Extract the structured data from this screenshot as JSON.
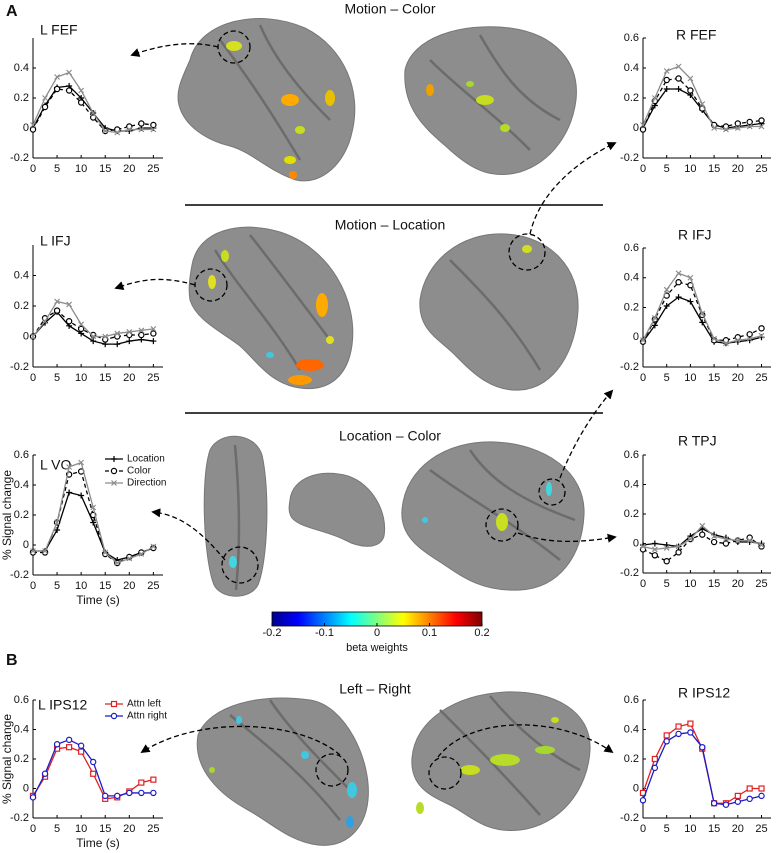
{
  "panel_labels": [
    "A",
    "B"
  ],
  "section_titles": [
    "Motion – Color",
    "Motion – Location",
    "Location – Color",
    "Left – Right"
  ],
  "colorbar": {
    "label": "beta weights",
    "lim": [
      -0.2,
      0.2
    ],
    "ticks": [
      -0.2,
      -0.1,
      0,
      0.1,
      0.2
    ]
  },
  "chart_data": [
    {
      "type": "line",
      "title": "L FEF",
      "x": [
        0,
        2.5,
        5,
        7.5,
        10,
        12.5,
        15,
        17.5,
        20,
        22.5,
        25
      ],
      "xlim": [
        0,
        27
      ],
      "xticks": [
        0,
        5,
        10,
        15,
        20,
        25
      ],
      "ylim": [
        -0.2,
        0.6
      ],
      "yticks": [
        -0.2,
        0,
        0.2,
        0.4
      ],
      "series": [
        {
          "color": "#000000",
          "linestyle": "solid",
          "marker": "plus",
          "values": [
            0,
            0.15,
            0.27,
            0.28,
            0.2,
            0.1,
            0,
            -0.02,
            -0.02,
            0,
            0
          ]
        },
        {
          "color": "#000000",
          "linestyle": "dashed",
          "marker": "circle",
          "values": [
            -0.01,
            0.14,
            0.26,
            0.25,
            0.17,
            0.07,
            -0.02,
            -0.01,
            0.01,
            0.03,
            0.02
          ]
        },
        {
          "color": "#8c8c8c",
          "linestyle": "solid",
          "marker": "x",
          "values": [
            0.02,
            0.2,
            0.34,
            0.37,
            0.25,
            0.1,
            -0.02,
            -0.03,
            -0.01,
            -0.01,
            -0.01
          ]
        }
      ]
    },
    {
      "type": "line",
      "title": "R FEF",
      "x": [
        0,
        2.5,
        5,
        7.5,
        10,
        12.5,
        15,
        17.5,
        20,
        22.5,
        25
      ],
      "xlim": [
        0,
        27
      ],
      "xticks": [
        0,
        5,
        10,
        15,
        20,
        25
      ],
      "ylim": [
        -0.2,
        0.6
      ],
      "yticks": [
        -0.2,
        0,
        0.2,
        0.4,
        0.6
      ],
      "series": [
        {
          "color": "#000000",
          "linestyle": "solid",
          "marker": "plus",
          "values": [
            0,
            0.15,
            0.26,
            0.26,
            0.22,
            0.12,
            0.02,
            0,
            0.01,
            0.02,
            0.03
          ]
        },
        {
          "color": "#000000",
          "linestyle": "dashed",
          "marker": "circle",
          "values": [
            -0.01,
            0.18,
            0.32,
            0.33,
            0.25,
            0.13,
            0.02,
            0.01,
            0.03,
            0.04,
            0.05
          ]
        },
        {
          "color": "#8c8c8c",
          "linestyle": "solid",
          "marker": "x",
          "values": [
            0.02,
            0.2,
            0.38,
            0.41,
            0.33,
            0.16,
            0,
            -0.01,
            0,
            0.01,
            0.01
          ]
        }
      ]
    },
    {
      "type": "line",
      "title": "L IFJ",
      "x": [
        0,
        2.5,
        5,
        7.5,
        10,
        12.5,
        15,
        17.5,
        20,
        22.5,
        25
      ],
      "xlim": [
        0,
        27
      ],
      "xticks": [
        0,
        5,
        10,
        15,
        20,
        25
      ],
      "ylim": [
        -0.2,
        0.6
      ],
      "yticks": [
        -0.2,
        0,
        0.2,
        0.4
      ],
      "series": [
        {
          "color": "#000000",
          "linestyle": "solid",
          "marker": "plus",
          "values": [
            0,
            0.09,
            0.16,
            0.07,
            0.02,
            -0.03,
            -0.05,
            -0.05,
            -0.03,
            -0.02,
            -0.03
          ]
        },
        {
          "color": "#000000",
          "linestyle": "dashed",
          "marker": "circle",
          "values": [
            0,
            0.12,
            0.17,
            0.1,
            0.05,
            0.01,
            -0.02,
            0,
            0.01,
            0.01,
            0.02
          ]
        },
        {
          "color": "#8c8c8c",
          "linestyle": "solid",
          "marker": "x",
          "values": [
            0,
            0.1,
            0.23,
            0.21,
            0.08,
            0,
            0,
            0.02,
            0.03,
            0.04,
            0.05
          ]
        }
      ]
    },
    {
      "type": "line",
      "title": "R IFJ",
      "x": [
        0,
        2.5,
        5,
        7.5,
        10,
        12.5,
        15,
        17.5,
        20,
        22.5,
        25
      ],
      "xlim": [
        0,
        27
      ],
      "xticks": [
        0,
        5,
        10,
        15,
        20,
        25
      ],
      "ylim": [
        -0.2,
        0.6
      ],
      "yticks": [
        -0.2,
        0,
        0.2,
        0.4,
        0.6
      ],
      "series": [
        {
          "color": "#000000",
          "linestyle": "solid",
          "marker": "plus",
          "values": [
            -0.03,
            0.08,
            0.21,
            0.27,
            0.24,
            0.1,
            -0.03,
            -0.04,
            -0.03,
            -0.02,
            0
          ]
        },
        {
          "color": "#000000",
          "linestyle": "dashed",
          "marker": "circle",
          "values": [
            -0.03,
            0.12,
            0.28,
            0.37,
            0.35,
            0.15,
            -0.02,
            -0.02,
            0,
            0.02,
            0.06
          ]
        },
        {
          "color": "#8c8c8c",
          "linestyle": "solid",
          "marker": "x",
          "values": [
            -0.02,
            0.13,
            0.32,
            0.43,
            0.4,
            0.16,
            -0.01,
            -0.04,
            -0.02,
            -0.01,
            0.01
          ]
        }
      ]
    },
    {
      "type": "line",
      "title": "L VO",
      "xlabel": "Time (s)",
      "ylabel": "% Signal change",
      "legend": "upper right",
      "x": [
        0,
        2.5,
        5,
        7.5,
        10,
        12.5,
        15,
        17.5,
        20,
        22.5,
        25
      ],
      "xlim": [
        0,
        27
      ],
      "xticks": [
        0,
        5,
        10,
        15,
        20,
        25
      ],
      "ylim": [
        -0.2,
        0.6
      ],
      "yticks": [
        -0.2,
        0,
        0.2,
        0.4,
        0.6
      ],
      "series": [
        {
          "name": "Location",
          "color": "#000000",
          "linestyle": "solid",
          "marker": "plus",
          "values": [
            -0.04,
            -0.04,
            0.1,
            0.35,
            0.33,
            0.15,
            -0.05,
            -0.1,
            -0.08,
            -0.05,
            -0.02
          ]
        },
        {
          "name": "Color",
          "color": "#000000",
          "linestyle": "dashed",
          "marker": "circle",
          "values": [
            -0.05,
            -0.05,
            0.15,
            0.47,
            0.49,
            0.2,
            -0.06,
            -0.12,
            -0.08,
            -0.05,
            -0.02
          ]
        },
        {
          "name": "Direction",
          "color": "#8c8c8c",
          "linestyle": "solid",
          "marker": "x",
          "values": [
            -0.04,
            -0.04,
            0.15,
            0.52,
            0.55,
            0.25,
            -0.05,
            -0.12,
            -0.09,
            -0.06,
            -0.01
          ]
        }
      ]
    },
    {
      "type": "line",
      "title": "R TPJ",
      "x": [
        0,
        2.5,
        5,
        7.5,
        10,
        12.5,
        15,
        17.5,
        20,
        22.5,
        25
      ],
      "xlim": [
        0,
        27
      ],
      "xticks": [
        0,
        5,
        10,
        15,
        20,
        25
      ],
      "ylim": [
        -0.2,
        0.6
      ],
      "yticks": [
        -0.2,
        0,
        0.2,
        0.4,
        0.6
      ],
      "series": [
        {
          "color": "#000000",
          "linestyle": "solid",
          "marker": "plus",
          "values": [
            -0.01,
            0,
            -0.01,
            -0.02,
            0.05,
            0.1,
            0.06,
            0.04,
            0.01,
            0.01,
            0
          ]
        },
        {
          "color": "#000000",
          "linestyle": "dashed",
          "marker": "circle",
          "values": [
            -0.04,
            -0.08,
            -0.12,
            -0.06,
            0.03,
            0.06,
            0.01,
            0,
            0.02,
            0.04,
            -0.02
          ]
        },
        {
          "color": "#8c8c8c",
          "linestyle": "solid",
          "marker": "x",
          "values": [
            -0.02,
            -0.04,
            -0.03,
            -0.02,
            0.03,
            0.12,
            0.05,
            0.03,
            0.02,
            0.02,
            -0.01
          ]
        }
      ]
    },
    {
      "type": "line",
      "title": "L IPS12",
      "xlabel": "Time (s)",
      "ylabel": "% Signal change",
      "legend": "upper right",
      "x": [
        0,
        2.5,
        5,
        7.5,
        10,
        12.5,
        15,
        17.5,
        20,
        22.5,
        25
      ],
      "xlim": [
        0,
        27
      ],
      "xticks": [
        0,
        5,
        10,
        15,
        20,
        25
      ],
      "ylim": [
        -0.2,
        0.6
      ],
      "yticks": [
        -0.2,
        0,
        0.2,
        0.4,
        0.6
      ],
      "series": [
        {
          "name": "Attn left",
          "color": "#e02020",
          "linestyle": "solid",
          "marker": "square",
          "values": [
            -0.05,
            0.08,
            0.27,
            0.28,
            0.25,
            0.1,
            -0.07,
            -0.06,
            -0.02,
            0.04,
            0.06
          ]
        },
        {
          "name": "Attn right",
          "color": "#1c1cc8",
          "linestyle": "solid",
          "marker": "circle",
          "values": [
            -0.06,
            0.1,
            0.3,
            0.33,
            0.29,
            0.18,
            -0.05,
            -0.05,
            -0.03,
            -0.03,
            -0.03
          ]
        }
      ]
    },
    {
      "type": "line",
      "title": "R IPS12",
      "x": [
        0,
        2.5,
        5,
        7.5,
        10,
        12.5,
        15,
        17.5,
        20,
        22.5,
        25
      ],
      "xlim": [
        0,
        27
      ],
      "xticks": [
        0,
        5,
        10,
        15,
        20,
        25
      ],
      "ylim": [
        -0.2,
        0.6
      ],
      "yticks": [
        -0.2,
        0,
        0.2,
        0.4,
        0.6
      ],
      "series": [
        {
          "color": "#e02020",
          "linestyle": "solid",
          "marker": "square",
          "values": [
            -0.03,
            0.2,
            0.36,
            0.42,
            0.44,
            0.27,
            -0.1,
            -0.1,
            -0.05,
            0,
            0
          ]
        },
        {
          "color": "#1c1cc8",
          "linestyle": "solid",
          "marker": "circle",
          "values": [
            -0.08,
            0.14,
            0.32,
            0.37,
            0.38,
            0.28,
            -0.1,
            -0.11,
            -0.09,
            -0.07,
            -0.05
          ]
        }
      ]
    }
  ]
}
